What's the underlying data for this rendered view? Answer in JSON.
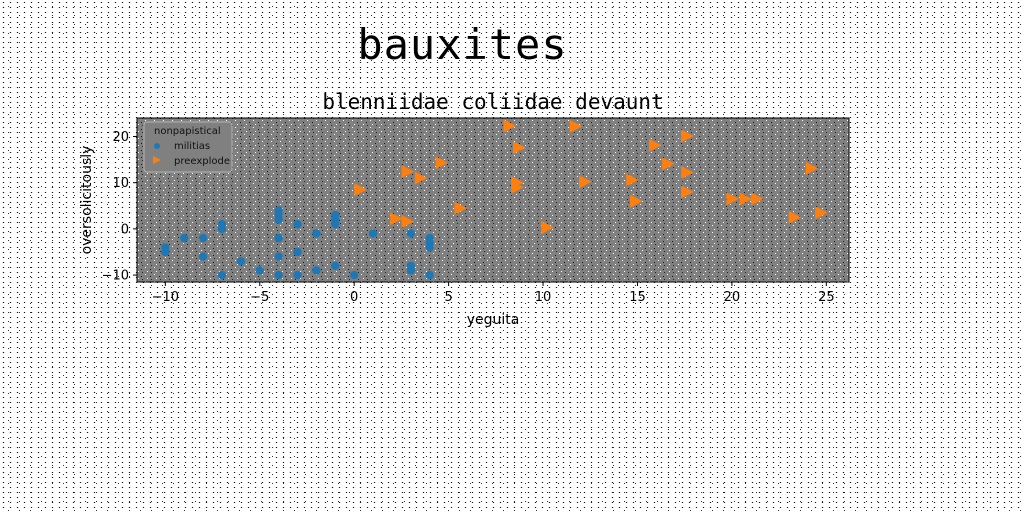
{
  "figure": {
    "suptitle": "bauxites"
  },
  "chart_data": {
    "type": "scatter",
    "title": "blenniidae coliidae devaunt",
    "xlabel": "yeguita",
    "ylabel": "oversolicitously",
    "xlim": [
      -11.5,
      26.2
    ],
    "ylim": [
      -11.5,
      24
    ],
    "xticks": [
      -10,
      -5,
      0,
      5,
      10,
      15,
      20,
      25
    ],
    "yticks": [
      -10,
      0,
      10,
      20
    ],
    "grid": false,
    "legend": {
      "title": "nonpapistical",
      "placement": "top-left"
    },
    "series": [
      {
        "name": "militias",
        "color": "#1f77b4",
        "marker": "circle",
        "points": [
          [
            -10,
            -4
          ],
          [
            -10,
            -5
          ],
          [
            -9,
            -2
          ],
          [
            -8,
            -2
          ],
          [
            -8,
            -6
          ],
          [
            -7,
            0
          ],
          [
            -7,
            1
          ],
          [
            -7,
            -10
          ],
          [
            -6,
            -7
          ],
          [
            -5,
            -9
          ],
          [
            -4,
            4
          ],
          [
            -4,
            3
          ],
          [
            -4,
            2
          ],
          [
            -4,
            -2
          ],
          [
            -4,
            -6
          ],
          [
            -4,
            -10
          ],
          [
            -3,
            1
          ],
          [
            -3,
            -5
          ],
          [
            -3,
            -10
          ],
          [
            -2,
            -1
          ],
          [
            -2,
            -9
          ],
          [
            -1,
            3
          ],
          [
            -1,
            2
          ],
          [
            -1,
            1
          ],
          [
            -1,
            -8
          ],
          [
            0,
            -10
          ],
          [
            1,
            -1
          ],
          [
            3,
            -1
          ],
          [
            3,
            -8
          ],
          [
            3,
            -9
          ],
          [
            4,
            -2
          ],
          [
            4,
            -3
          ],
          [
            4,
            -4
          ],
          [
            4,
            -10
          ]
        ]
      },
      {
        "name": "preexplode",
        "color": "#ff7f0e",
        "marker": "triangle-right",
        "points": [
          [
            0.3,
            8.5
          ],
          [
            2.2,
            2.2
          ],
          [
            2.8,
            1.6
          ],
          [
            2.8,
            12.4
          ],
          [
            3.5,
            11
          ],
          [
            4.6,
            14.3
          ],
          [
            5.6,
            4.5
          ],
          [
            8.2,
            22.3
          ],
          [
            8.7,
            17.6
          ],
          [
            8.6,
            10
          ],
          [
            8.6,
            9
          ],
          [
            10.2,
            0.3
          ],
          [
            11.7,
            22.2
          ],
          [
            12.2,
            10.2
          ],
          [
            14.7,
            10.6
          ],
          [
            14.9,
            6
          ],
          [
            15.9,
            18.1
          ],
          [
            16.6,
            14.1
          ],
          [
            17.6,
            20.1
          ],
          [
            17.6,
            12.2
          ],
          [
            17.6,
            8
          ],
          [
            20,
            6.5
          ],
          [
            20.7,
            6.5
          ],
          [
            21.3,
            6.5
          ],
          [
            23.3,
            2.5
          ],
          [
            24.2,
            13.1
          ],
          [
            24.7,
            3.5
          ]
        ]
      }
    ]
  }
}
